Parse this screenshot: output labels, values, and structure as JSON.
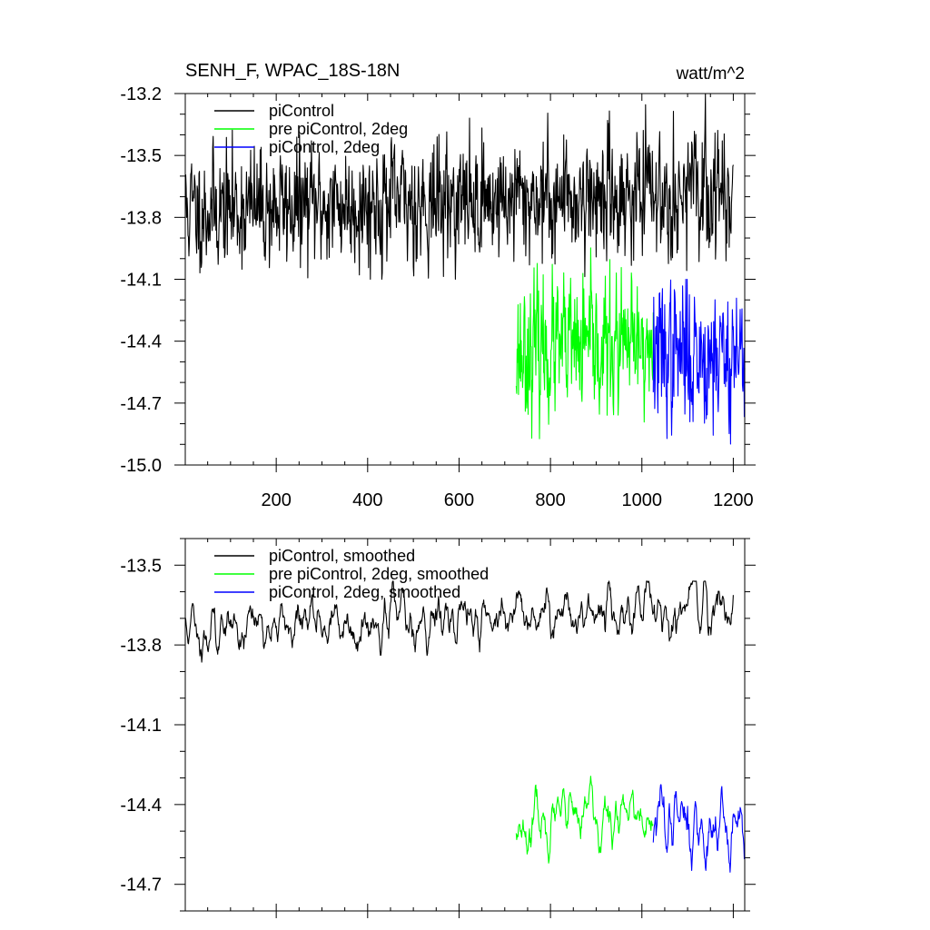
{
  "title_left": "SENH_F, WPAC_18S-18N",
  "title_right": "watt/m^2",
  "colors": {
    "black": "#000000",
    "green": "#00ff00",
    "blue": "#0000ff"
  },
  "chart_data": [
    {
      "type": "line",
      "title": "SENH_F, WPAC_18S-18N",
      "units": "watt/m^2",
      "xlim": [
        1,
        1225
      ],
      "ylim": [
        -15.0,
        -13.2
      ],
      "xticks": [
        200,
        400,
        600,
        800,
        1000,
        1200
      ],
      "xtick_labels": [
        "200",
        "400",
        "600",
        "800",
        "1000",
        "1200"
      ],
      "yticks": [
        -13.2,
        -13.5,
        -13.8,
        -14.1,
        -14.4,
        -14.7,
        -15.0
      ],
      "ytick_labels": [
        "-13.2",
        "-13.5",
        "-13.8",
        "-14.1",
        "-14.4",
        "-14.7",
        "-15.0"
      ],
      "legend_position": "top-left",
      "series": [
        {
          "name": "piControl",
          "color": "#000000",
          "x_start": 1,
          "x_end": 1200,
          "mean": -13.72,
          "amp": 0.14,
          "min": -14.1,
          "max": -13.2,
          "trend": 0.09,
          "seed": 11,
          "smoothed": false
        },
        {
          "name": "pre piControl, 2deg",
          "color": "#00ff00",
          "x_start": 725,
          "x_end": 1025,
          "mean": -14.44,
          "amp": 0.16,
          "min": -14.93,
          "max": -13.88,
          "trend": 0.0,
          "seed": 23,
          "smoothed": false
        },
        {
          "name": "piControl, 2deg",
          "color": "#0000ff",
          "x_start": 1025,
          "x_end": 1225,
          "mean": -14.46,
          "amp": 0.17,
          "min": -15.0,
          "max": -14.1,
          "trend": 0.0,
          "seed": 37,
          "smoothed": false
        }
      ]
    },
    {
      "type": "line",
      "title": "",
      "units": "",
      "xlim": [
        1,
        1225
      ],
      "ylim": [
        -14.8,
        -13.4
      ],
      "xticks": [
        200,
        400,
        600,
        800,
        1000,
        1200
      ],
      "xtick_labels": [],
      "yticks": [
        -13.5,
        -13.8,
        -14.1,
        -14.4,
        -14.7
      ],
      "ytick_labels": [
        "-13.5",
        "-13.8",
        "-14.1",
        "-14.4",
        "-14.7"
      ],
      "legend_position": "top-left",
      "series": [
        {
          "name": "piControl, smoothed",
          "color": "#000000",
          "x_start": 1,
          "x_end": 1200,
          "mean": -13.7,
          "amp": 0.05,
          "min": -13.89,
          "max": -13.56,
          "trend": 0.09,
          "seed": 11,
          "smoothed": true
        },
        {
          "name": "pre piControl, 2deg, smoothed",
          "color": "#00ff00",
          "x_start": 725,
          "x_end": 1025,
          "mean": -14.45,
          "amp": 0.06,
          "min": -14.63,
          "max": -14.27,
          "trend": 0.0,
          "seed": 23,
          "smoothed": true
        },
        {
          "name": "piControl, 2deg, smoothed",
          "color": "#0000ff",
          "x_start": 1025,
          "x_end": 1225,
          "mean": -14.48,
          "amp": 0.07,
          "min": -14.7,
          "max": -14.32,
          "trend": 0.0,
          "seed": 37,
          "smoothed": true
        }
      ]
    }
  ]
}
